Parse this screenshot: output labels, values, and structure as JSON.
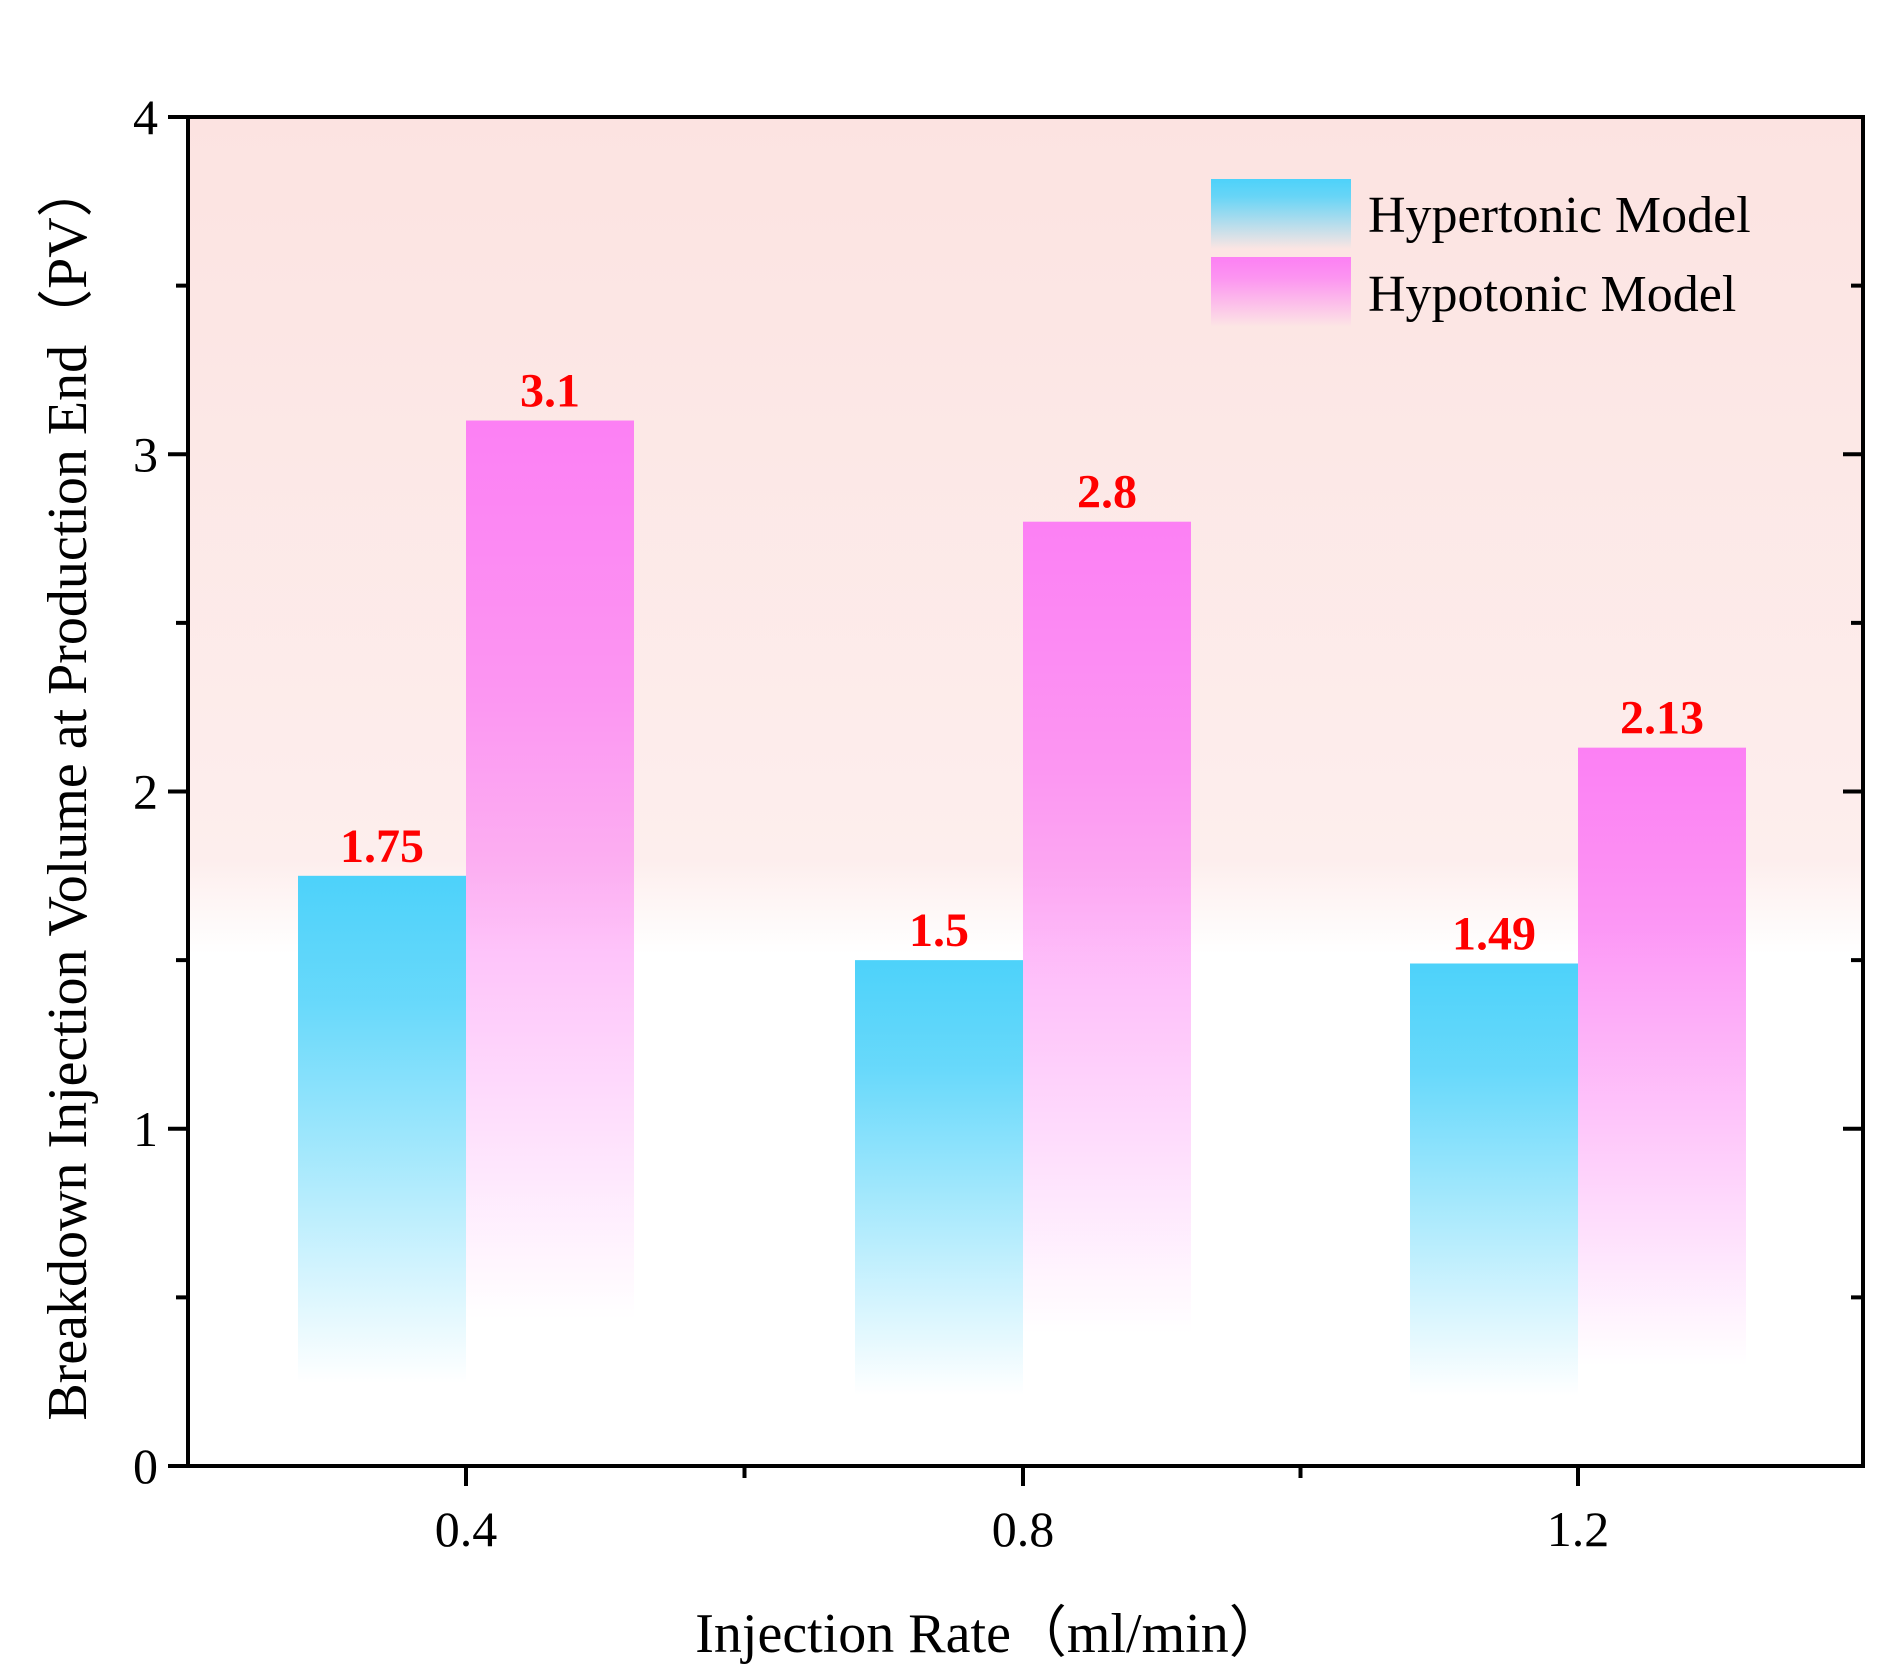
{
  "chart_data": {
    "type": "bar",
    "title": "",
    "xlabel": "Injection Rate（ml/min）",
    "ylabel": "Breakdown Injection Volume at Production End（PV）",
    "categories": [
      "0.4",
      "0.8",
      "1.2"
    ],
    "series": [
      {
        "name": "Hypertonic Model",
        "values": [
          1.75,
          1.5,
          1.49
        ],
        "labels": [
          "1.75",
          "1.5",
          "1.49"
        ],
        "color": "#4dd2fa"
      },
      {
        "name": "Hypotonic Model",
        "values": [
          3.1,
          2.8,
          2.13
        ],
        "labels": [
          "3.1",
          "2.8",
          "2.13"
        ],
        "color": "#fc80f4"
      }
    ],
    "ylim": [
      0,
      4
    ],
    "yticks": [
      0,
      1,
      2,
      3,
      4
    ],
    "yticks_labels": [
      "0",
      "1",
      "2",
      "3",
      "4"
    ],
    "grid": false,
    "legend_position": "top-right",
    "data_label_color": "#ff0000",
    "background_tint": "#fde8e6"
  }
}
